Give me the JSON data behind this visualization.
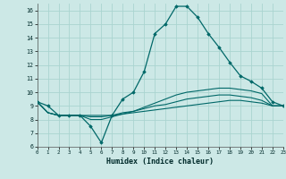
{
  "title": "",
  "xlabel": "Humidex (Indice chaleur)",
  "xlim": [
    0,
    23
  ],
  "ylim": [
    6,
    16.5
  ],
  "yticks": [
    6,
    7,
    8,
    9,
    10,
    11,
    12,
    13,
    14,
    15,
    16
  ],
  "xticks": [
    0,
    1,
    2,
    3,
    4,
    5,
    6,
    7,
    8,
    9,
    10,
    11,
    12,
    13,
    14,
    15,
    16,
    17,
    18,
    19,
    20,
    21,
    22,
    23
  ],
  "background_color": "#cce8e6",
  "grid_color": "#aad4d0",
  "line_color": "#006868",
  "series": {
    "main": [
      9.3,
      9.0,
      8.3,
      8.3,
      8.3,
      7.5,
      6.3,
      8.3,
      9.5,
      10.0,
      11.5,
      14.3,
      15.0,
      16.3,
      16.3,
      15.5,
      14.3,
      13.3,
      12.2,
      11.2,
      10.8,
      10.3,
      9.3,
      9.0
    ],
    "line2": [
      9.3,
      8.5,
      8.3,
      8.3,
      8.3,
      8.3,
      8.3,
      8.3,
      8.4,
      8.5,
      8.6,
      8.7,
      8.8,
      8.9,
      9.0,
      9.1,
      9.2,
      9.3,
      9.4,
      9.4,
      9.3,
      9.2,
      9.0,
      9.0
    ],
    "line3": [
      9.3,
      8.5,
      8.3,
      8.3,
      8.3,
      8.2,
      8.2,
      8.3,
      8.5,
      8.6,
      8.8,
      9.0,
      9.1,
      9.3,
      9.5,
      9.6,
      9.7,
      9.8,
      9.8,
      9.7,
      9.6,
      9.4,
      9.0,
      9.0
    ],
    "line4": [
      9.3,
      8.5,
      8.3,
      8.3,
      8.3,
      8.0,
      8.0,
      8.2,
      8.4,
      8.6,
      8.9,
      9.2,
      9.5,
      9.8,
      10.0,
      10.1,
      10.2,
      10.3,
      10.3,
      10.2,
      10.1,
      9.9,
      9.0,
      9.0
    ]
  }
}
